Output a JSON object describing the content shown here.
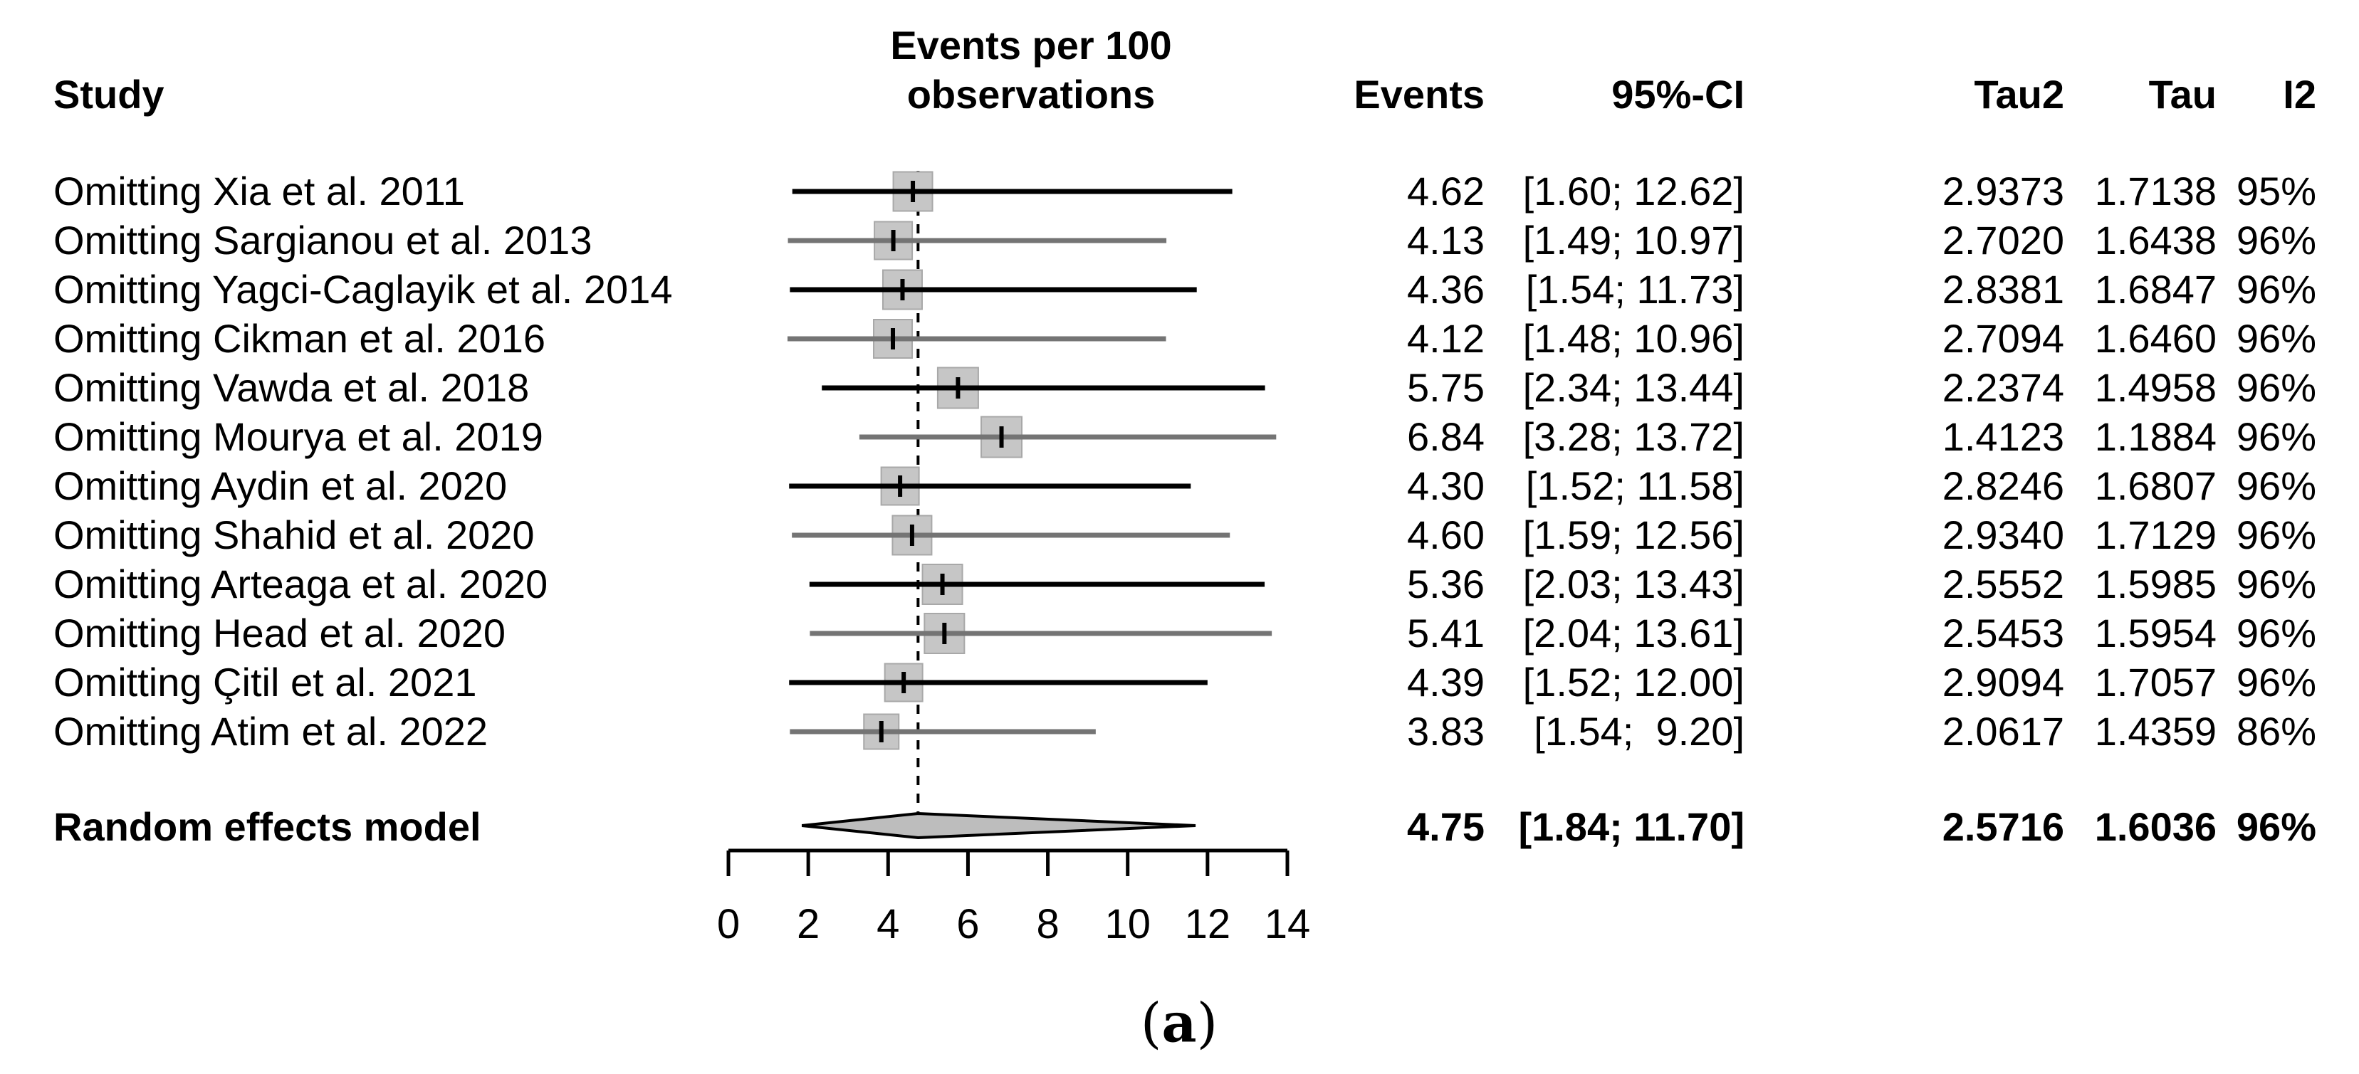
{
  "columns": {
    "study": "Study",
    "effect_line1": "Events per 100",
    "effect_line2": "observations",
    "events": "Events",
    "ci": "95%-CI",
    "tau2": "Tau2",
    "tau": "Tau",
    "i2": "I2"
  },
  "rows": [
    {
      "study": "Omitting Xia et al. 2011",
      "events": "4.62",
      "ci": "[1.60; 12.62]",
      "tau2": "2.9373",
      "tau": "1.7138",
      "i2": "95%"
    },
    {
      "study": "Omitting Sargianou et al. 2013",
      "events": "4.13",
      "ci": "[1.49; 10.97]",
      "tau2": "2.7020",
      "tau": "1.6438",
      "i2": "96%"
    },
    {
      "study": "Omitting Yagci-Caglayik et al. 2014",
      "events": "4.36",
      "ci": "[1.54; 11.73]",
      "tau2": "2.8381",
      "tau": "1.6847",
      "i2": "96%"
    },
    {
      "study": "Omitting Cikman et al. 2016",
      "events": "4.12",
      "ci": "[1.48; 10.96]",
      "tau2": "2.7094",
      "tau": "1.6460",
      "i2": "96%"
    },
    {
      "study": "Omitting Vawda et al. 2018",
      "events": "5.75",
      "ci": "[2.34; 13.44]",
      "tau2": "2.2374",
      "tau": "1.4958",
      "i2": "96%"
    },
    {
      "study": "Omitting Mourya et al. 2019",
      "events": "6.84",
      "ci": "[3.28; 13.72]",
      "tau2": "1.4123",
      "tau": "1.1884",
      "i2": "96%"
    },
    {
      "study": "Omitting Aydin et al. 2020",
      "events": "4.30",
      "ci": "[1.52; 11.58]",
      "tau2": "2.8246",
      "tau": "1.6807",
      "i2": "96%"
    },
    {
      "study": "Omitting Shahid et al. 2020",
      "events": "4.60",
      "ci": "[1.59; 12.56]",
      "tau2": "2.9340",
      "tau": "1.7129",
      "i2": "96%"
    },
    {
      "study": "Omitting Arteaga et al. 2020",
      "events": "5.36",
      "ci": "[2.03; 13.43]",
      "tau2": "2.5552",
      "tau": "1.5985",
      "i2": "96%"
    },
    {
      "study": "Omitting Head et al. 2020",
      "events": "5.41",
      "ci": "[2.04; 13.61]",
      "tau2": "2.5453",
      "tau": "1.5954",
      "i2": "96%"
    },
    {
      "study": "Omitting Çitil et al. 2021",
      "events": "4.39",
      "ci": "[1.52; 12.00]",
      "tau2": "2.9094",
      "tau": "1.7057",
      "i2": "96%"
    },
    {
      "study": "Omitting Atim et al. 2022",
      "events": "3.83",
      "ci": "[1.54;  9.20]",
      "tau2": "2.0617",
      "tau": "1.4359",
      "i2": "86%"
    }
  ],
  "summary": {
    "label": "Random effects model",
    "events": "4.75",
    "ci": "[1.84; 11.70]",
    "tau2": "2.5716",
    "tau": "1.6036",
    "i2": "96%"
  },
  "panel": {
    "open": "(",
    "letter": "a",
    "close": ")"
  },
  "colors": {
    "square_fill": "#c6c6c6",
    "square_edge": "#a8a8a8",
    "diamond_fill": "#bdbdbd",
    "diamond_edge": "#000000",
    "whisker_odd": "#000000",
    "whisker_even": "#747474",
    "axis": "#000000"
  },
  "chart_data": {
    "type": "forest",
    "subtype": "leave-one-out sensitivity meta-analysis",
    "xlabel": "Events per 100 observations",
    "xlim": [
      0,
      14
    ],
    "xticks": [
      0,
      2,
      4,
      6,
      8,
      10,
      12,
      14
    ],
    "reference_line": 4.75,
    "grid": false,
    "categories": [
      "Omitting Xia et al. 2011",
      "Omitting Sargianou et al. 2013",
      "Omitting Yagci-Caglayik et al. 2014",
      "Omitting Cikman et al. 2016",
      "Omitting Vawda et al. 2018",
      "Omitting Mourya et al. 2019",
      "Omitting Aydin et al. 2020",
      "Omitting Shahid et al. 2020",
      "Omitting Arteaga et al. 2020",
      "Omitting Head et al. 2020",
      "Omitting Çitil et al. 2021",
      "Omitting Atim et al. 2022"
    ],
    "estimates": [
      4.62,
      4.13,
      4.36,
      4.12,
      5.75,
      6.84,
      4.3,
      4.6,
      5.36,
      5.41,
      4.39,
      3.83
    ],
    "ci_lower": [
      1.6,
      1.49,
      1.54,
      1.48,
      2.34,
      3.28,
      1.52,
      1.59,
      2.03,
      2.04,
      1.52,
      1.54
    ],
    "ci_upper": [
      12.62,
      10.97,
      11.73,
      10.96,
      13.44,
      13.72,
      11.58,
      12.56,
      13.43,
      13.61,
      12.0,
      9.2
    ],
    "tau2": [
      2.9373,
      2.702,
      2.8381,
      2.7094,
      2.2374,
      1.4123,
      2.8246,
      2.934,
      2.5552,
      2.5453,
      2.9094,
      2.0617
    ],
    "tau": [
      1.7138,
      1.6438,
      1.6847,
      1.646,
      1.4958,
      1.1884,
      1.6807,
      1.7129,
      1.5985,
      1.5954,
      1.7057,
      1.4359
    ],
    "i2_percent": [
      95,
      96,
      96,
      96,
      96,
      96,
      96,
      96,
      96,
      96,
      96,
      86
    ],
    "summary": {
      "label": "Random effects model",
      "estimate": 4.75,
      "ci_lower": 1.84,
      "ci_upper": 11.7,
      "tau2": 2.5716,
      "tau": 1.6036,
      "i2_percent": 96
    }
  }
}
